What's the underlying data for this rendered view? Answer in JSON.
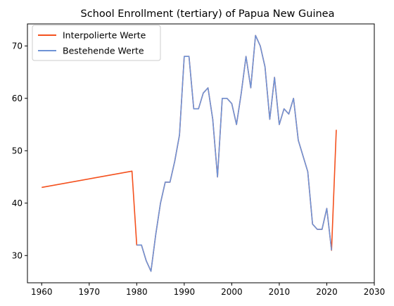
{
  "chart_data": {
    "type": "line",
    "title": "School Enrollment (tertiary) of Papua New Guinea",
    "xlabel": "",
    "ylabel": "",
    "xlim": [
      1957,
      2030
    ],
    "ylim": [
      24.8,
      74.2
    ],
    "xticks": [
      1960,
      1970,
      1980,
      1990,
      2000,
      2010,
      2020,
      2030
    ],
    "yticks": [
      30,
      40,
      50,
      60,
      70
    ],
    "grid": false,
    "legend_position": "top-left",
    "series": [
      {
        "name": "Interpolierte Werte",
        "color": "#f4511e",
        "points": [
          [
            1960,
            43
          ],
          [
            1979,
            46.1
          ],
          [
            1980,
            32
          ],
          [
            1981,
            32
          ],
          [
            1982,
            29
          ],
          [
            1983,
            27
          ],
          [
            1984,
            34
          ],
          [
            1985,
            40
          ],
          [
            1986,
            44
          ],
          [
            1987,
            44
          ],
          [
            1988,
            48
          ],
          [
            1989,
            53
          ],
          [
            1990,
            68
          ],
          [
            1991,
            68
          ],
          [
            1992,
            58
          ],
          [
            1993,
            58
          ],
          [
            1994,
            61
          ],
          [
            1995,
            62
          ],
          [
            1996,
            56
          ],
          [
            1997,
            45
          ],
          [
            1998,
            60
          ],
          [
            1999,
            60
          ],
          [
            2000,
            59
          ],
          [
            2001,
            55
          ],
          [
            2002,
            61
          ],
          [
            2003,
            68
          ],
          [
            2004,
            62
          ],
          [
            2005,
            72
          ],
          [
            2006,
            70
          ],
          [
            2007,
            66
          ],
          [
            2008,
            56
          ],
          [
            2009,
            64
          ],
          [
            2010,
            55
          ],
          [
            2011,
            58
          ],
          [
            2012,
            57
          ],
          [
            2013,
            60
          ],
          [
            2014,
            52
          ],
          [
            2015,
            49
          ],
          [
            2016,
            46
          ],
          [
            2017,
            36
          ],
          [
            2018,
            35
          ],
          [
            2019,
            35
          ],
          [
            2020,
            39
          ],
          [
            2021,
            31
          ],
          [
            2022,
            54
          ]
        ]
      },
      {
        "name": "Bestehende Werte",
        "color": "#6e93d6",
        "points": [
          [
            1980,
            32
          ],
          [
            1981,
            32
          ],
          [
            1982,
            29
          ],
          [
            1983,
            27
          ],
          [
            1984,
            34
          ],
          [
            1985,
            40
          ],
          [
            1986,
            44
          ],
          [
            1987,
            44
          ],
          [
            1988,
            48
          ],
          [
            1989,
            53
          ],
          [
            1990,
            68
          ],
          [
            1991,
            68
          ],
          [
            1992,
            58
          ],
          [
            1993,
            58
          ],
          [
            1994,
            61
          ],
          [
            1995,
            62
          ],
          [
            1996,
            56
          ],
          [
            1997,
            45
          ],
          [
            1998,
            60
          ],
          [
            1999,
            60
          ],
          [
            2000,
            59
          ],
          [
            2001,
            55
          ],
          [
            2002,
            61
          ],
          [
            2003,
            68
          ],
          [
            2004,
            62
          ],
          [
            2005,
            72
          ],
          [
            2006,
            70
          ],
          [
            2007,
            66
          ],
          [
            2008,
            56
          ],
          [
            2009,
            64
          ],
          [
            2010,
            55
          ],
          [
            2011,
            58
          ],
          [
            2012,
            57
          ],
          [
            2013,
            60
          ],
          [
            2014,
            52
          ],
          [
            2015,
            49
          ],
          [
            2016,
            46
          ],
          [
            2017,
            36
          ],
          [
            2018,
            35
          ],
          [
            2019,
            35
          ],
          [
            2020,
            39
          ],
          [
            2021,
            31
          ]
        ]
      }
    ]
  }
}
